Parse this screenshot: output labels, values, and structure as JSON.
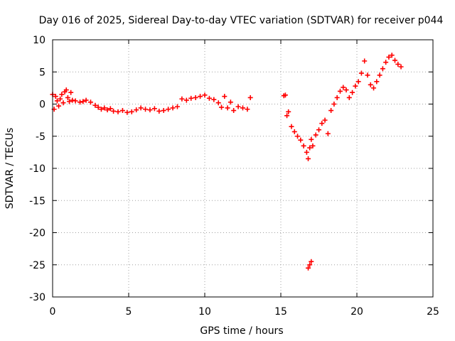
{
  "chart_data": {
    "type": "scatter",
    "title": "Day 016 of 2025, Sidereal Day-to-day VTEC variation (SDTVAR) for receiver p044",
    "xlabel": "GPS time / hours",
    "ylabel": "SDTVAR / TECUs",
    "xlim": [
      0,
      25
    ],
    "ylim": [
      -30,
      10
    ],
    "xticks": [
      "0",
      "5",
      "10",
      "15",
      "20",
      "25"
    ],
    "yticks": [
      "10",
      "5",
      "0",
      "-5",
      "-10",
      "-15",
      "-20",
      "-25",
      "-30"
    ],
    "grid": true,
    "marker": "+",
    "color": "#ff0000",
    "series": [
      {
        "name": "SDTVAR",
        "x": [
          0.0,
          0.1,
          0.2,
          0.3,
          0.4,
          0.5,
          0.6,
          0.7,
          0.8,
          0.9,
          1.0,
          1.1,
          1.2,
          1.3,
          1.5,
          1.8,
          2.0,
          2.2,
          2.5,
          2.8,
          3.0,
          3.2,
          3.4,
          3.6,
          3.8,
          4.0,
          4.3,
          4.6,
          4.9,
          5.2,
          5.5,
          5.8,
          6.1,
          6.4,
          6.7,
          7.0,
          7.3,
          7.6,
          7.9,
          8.2,
          8.5,
          8.8,
          9.1,
          9.4,
          9.7,
          10.0,
          10.3,
          10.6,
          10.9,
          11.1,
          11.3,
          11.5,
          11.7,
          11.9,
          12.2,
          12.5,
          12.8,
          13.0,
          15.2,
          15.3,
          15.4,
          15.5,
          15.7,
          15.9,
          16.1,
          16.3,
          16.5,
          16.7,
          16.8,
          16.9,
          17.0,
          17.1,
          17.3,
          17.5,
          17.7,
          17.9,
          18.1,
          18.3,
          18.5,
          18.7,
          18.9,
          19.1,
          19.3,
          19.5,
          19.7,
          19.9,
          20.1,
          20.3,
          20.5,
          20.7,
          20.9,
          21.1,
          21.3,
          21.5,
          21.7,
          21.9,
          22.1,
          22.3,
          22.5,
          22.7,
          22.9,
          16.8,
          16.9,
          17.0
        ],
        "y": [
          1.5,
          -0.8,
          1.2,
          0.5,
          -0.3,
          0.8,
          1.5,
          0.2,
          1.9,
          2.2,
          1.0,
          0.4,
          1.8,
          0.6,
          0.5,
          0.3,
          0.4,
          0.6,
          0.3,
          -0.2,
          -0.5,
          -0.8,
          -0.6,
          -0.9,
          -0.7,
          -1.1,
          -1.2,
          -1.0,
          -1.3,
          -1.2,
          -0.9,
          -0.6,
          -0.8,
          -0.9,
          -0.7,
          -1.1,
          -1.0,
          -0.8,
          -0.6,
          -0.4,
          0.8,
          0.6,
          0.9,
          1.0,
          1.2,
          1.4,
          0.9,
          0.7,
          0.2,
          -0.5,
          1.2,
          -0.6,
          0.3,
          -1.0,
          -0.4,
          -0.6,
          -0.8,
          1.0,
          1.3,
          1.4,
          -1.8,
          -1.2,
          -3.5,
          -4.3,
          -5.0,
          -5.6,
          -6.5,
          -7.5,
          -8.5,
          -6.8,
          -5.5,
          -6.5,
          -4.8,
          -4.0,
          -3.0,
          -2.5,
          -4.6,
          -1.0,
          0.0,
          1.0,
          2.0,
          2.6,
          2.2,
          1.0,
          1.8,
          2.8,
          3.5,
          4.8,
          6.7,
          4.5,
          3.0,
          2.5,
          3.5,
          4.5,
          5.5,
          6.5,
          7.3,
          7.6,
          6.8,
          6.2,
          5.8,
          -25.5,
          -25.0,
          -24.5
        ]
      }
    ]
  }
}
